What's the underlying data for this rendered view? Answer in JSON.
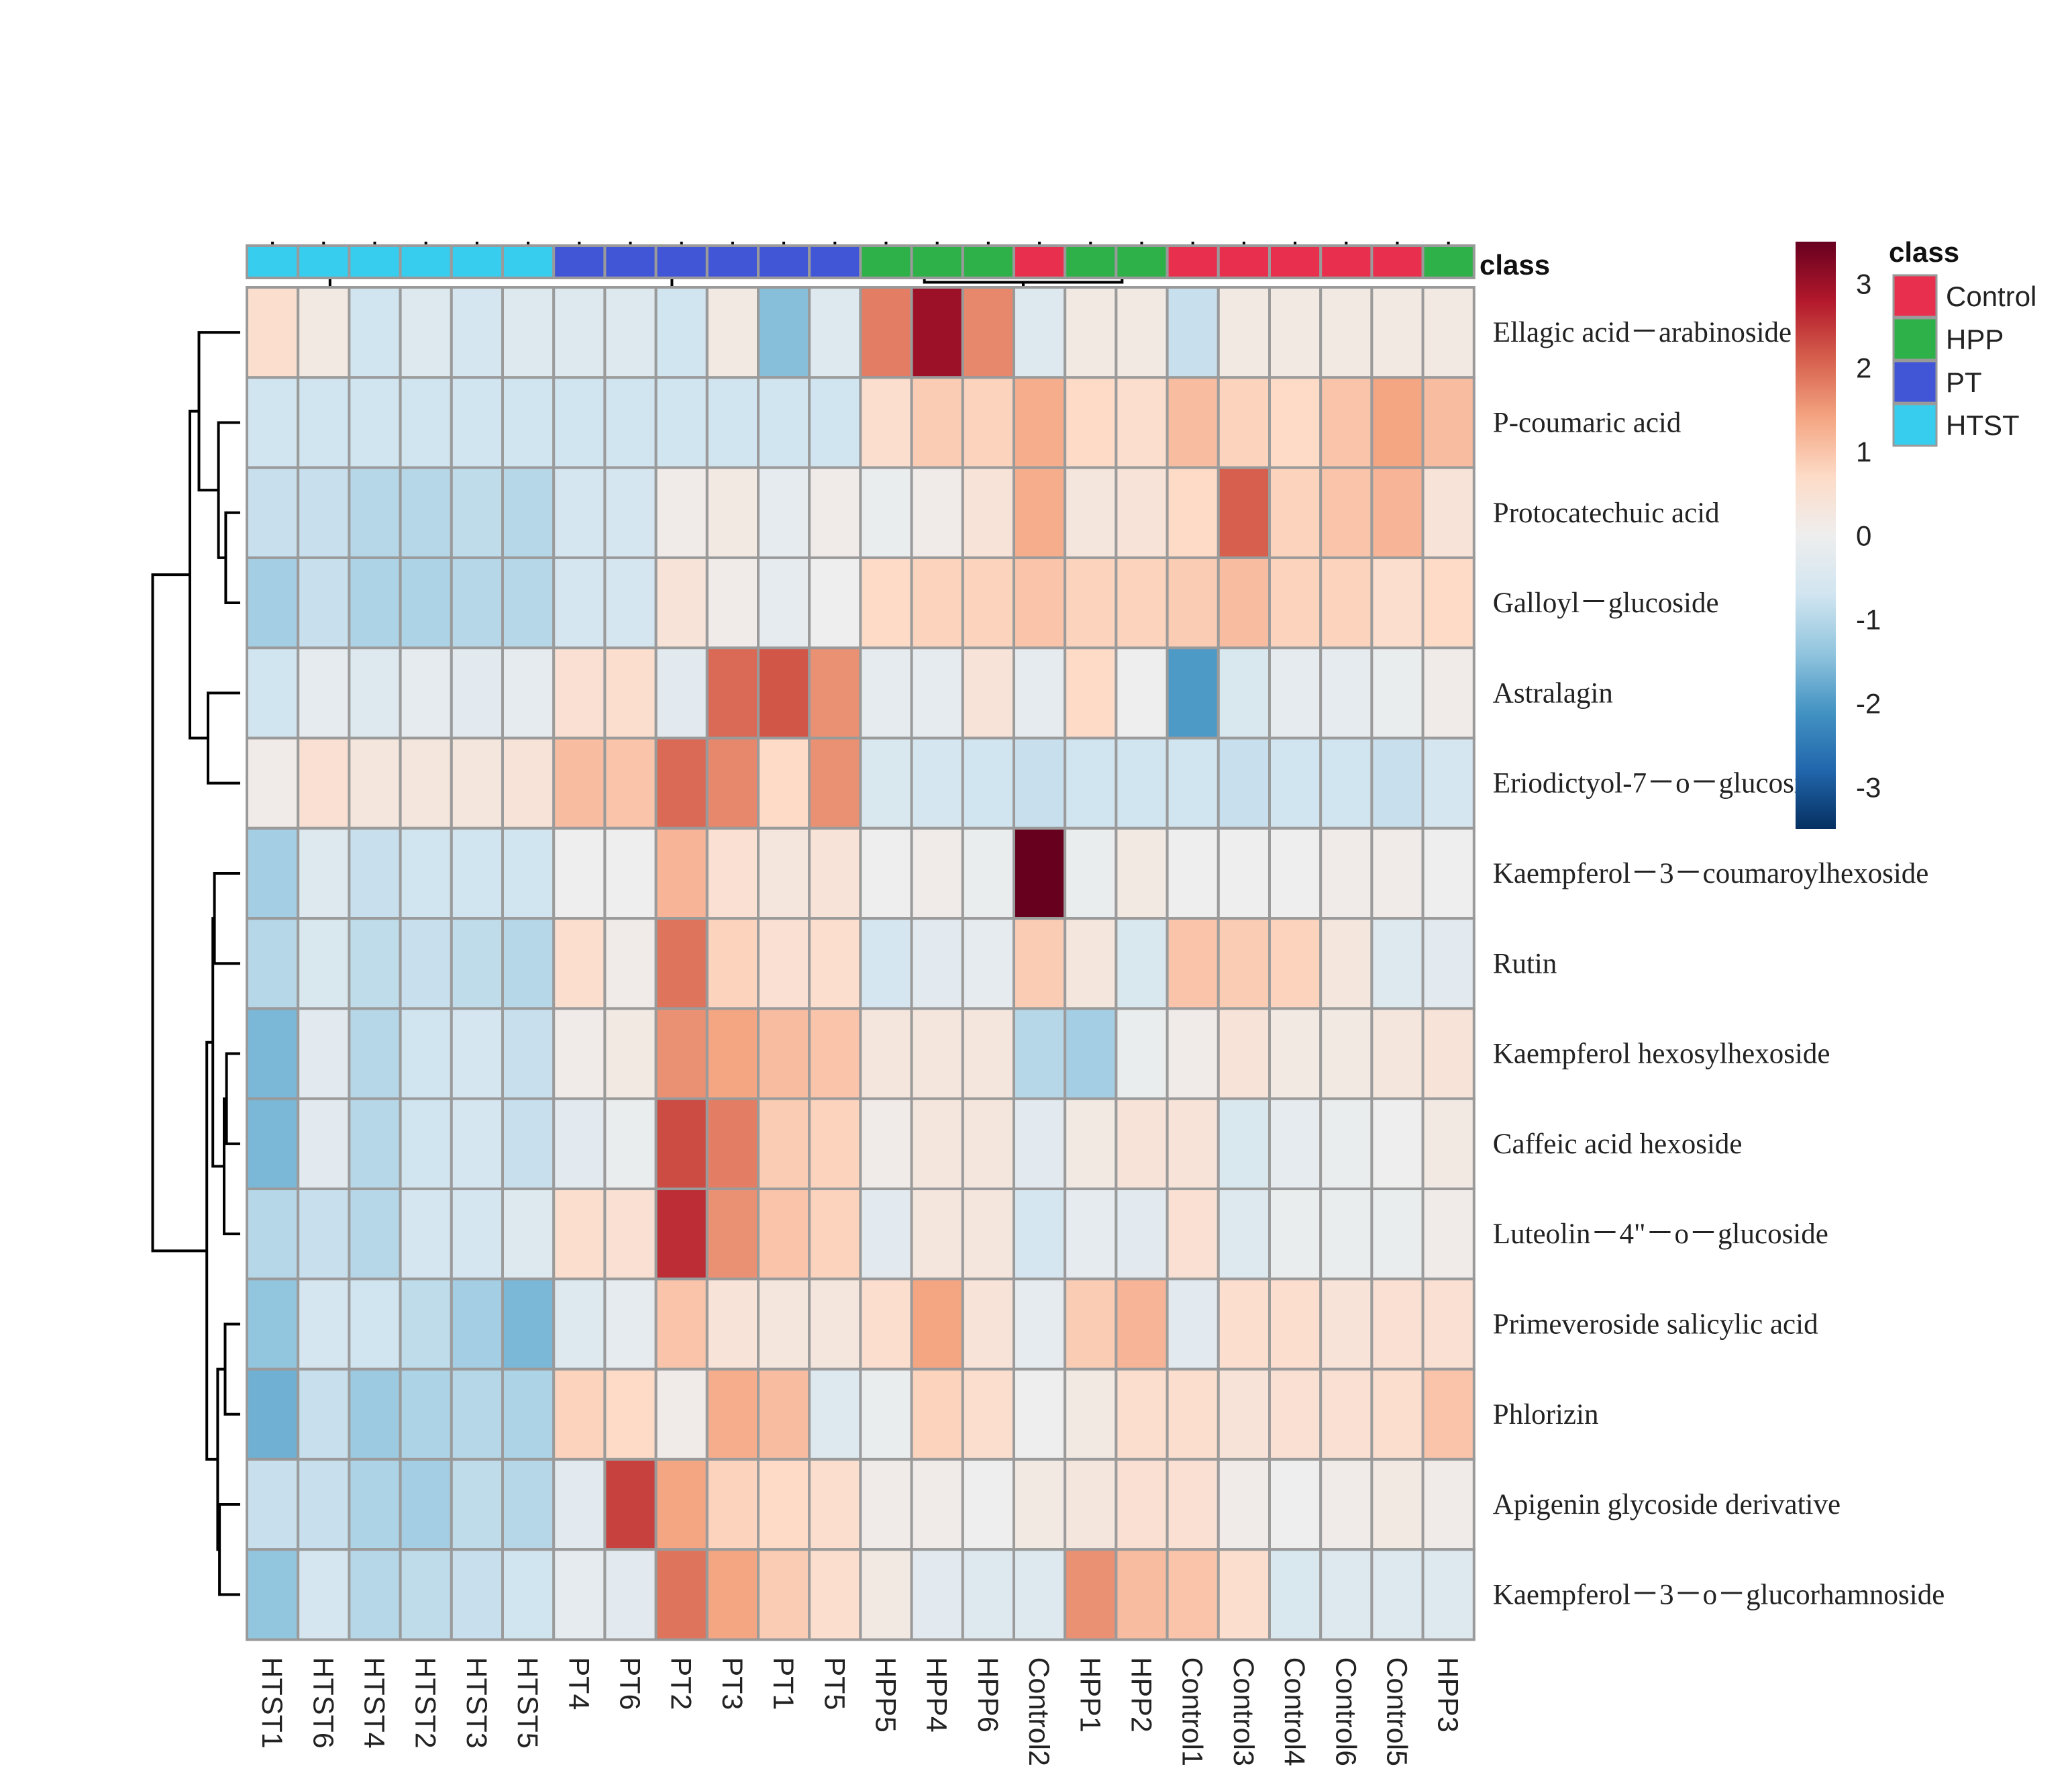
{
  "chart_data": {
    "type": "heatmap",
    "title": "",
    "columns": [
      "HTST1",
      "HTST6",
      "HTST4",
      "HTST2",
      "HTST3",
      "HTST5",
      "PT4",
      "PT6",
      "PT2",
      "PT3",
      "PT1",
      "PT5",
      "HPP5",
      "HPP4",
      "HPP6",
      "Control2",
      "HPP1",
      "HPP2",
      "Control1",
      "Control3",
      "Control4",
      "Control6",
      "Control5",
      "HPP3"
    ],
    "column_classes": [
      "HTST",
      "HTST",
      "HTST",
      "HTST",
      "HTST",
      "HTST",
      "PT",
      "PT",
      "PT",
      "PT",
      "PT",
      "PT",
      "HPP",
      "HPP",
      "HPP",
      "Control",
      "HPP",
      "HPP",
      "Control",
      "Control",
      "Control",
      "Control",
      "Control",
      "HPP"
    ],
    "rows": [
      "Ellagic acid－arabinoside",
      "P-coumaric acid",
      "Protocatechuic acid",
      "Galloyl－glucoside",
      "Astralagin",
      "Eriodictyol-7－o－glucoside",
      "Kaempferol－3－coumaroylhexoside",
      "Rutin",
      "Kaempferol hexosylhexoside",
      "Caffeic acid hexoside",
      "Luteolin－4\"－o－glucoside",
      "Primeveroside salicylic acid",
      "Phlorizin",
      "Apigenin glycoside derivative",
      "Kaempferol－3－o－glucorhamnoside"
    ],
    "values": [
      [
        0.6,
        0.2,
        -0.7,
        -0.4,
        -0.6,
        -0.4,
        -0.4,
        -0.4,
        -0.7,
        0.2,
        -1.5,
        -0.4,
        1.8,
        3.0,
        1.7,
        -0.4,
        0.2,
        0.2,
        -0.8,
        0.2,
        0.2,
        0.2,
        0.2,
        0.2
      ],
      [
        -0.7,
        -0.7,
        -0.7,
        -0.7,
        -0.7,
        -0.7,
        -0.7,
        -0.7,
        -0.7,
        -0.7,
        -0.7,
        -0.7,
        0.6,
        0.9,
        0.8,
        1.3,
        0.7,
        0.6,
        1.1,
        0.8,
        0.7,
        1.0,
        1.4,
        1.1
      ],
      [
        -0.8,
        -0.8,
        -1.0,
        -1.0,
        -0.9,
        -1.0,
        -0.6,
        -0.6,
        0.1,
        0.2,
        -0.2,
        0.1,
        -0.1,
        0.1,
        0.4,
        1.3,
        0.3,
        0.4,
        0.7,
        2.1,
        0.8,
        1.0,
        1.2,
        0.4
      ],
      [
        -1.2,
        -0.8,
        -1.1,
        -1.1,
        -1.0,
        -1.0,
        -0.6,
        -0.6,
        0.4,
        0.1,
        -0.2,
        0.0,
        0.7,
        0.8,
        0.8,
        1.0,
        0.8,
        0.8,
        0.9,
        1.1,
        0.8,
        0.8,
        0.6,
        0.7
      ],
      [
        -0.7,
        -0.2,
        -0.4,
        -0.2,
        -0.3,
        -0.2,
        0.5,
        0.6,
        -0.3,
        2.0,
        2.2,
        1.6,
        -0.2,
        -0.2,
        0.4,
        -0.2,
        0.7,
        0.0,
        -2.0,
        -0.5,
        -0.2,
        -0.2,
        -0.1,
        0.1
      ],
      [
        0.1,
        0.5,
        0.3,
        0.3,
        0.3,
        0.4,
        1.1,
        1.0,
        2.0,
        1.7,
        0.7,
        1.6,
        -0.5,
        -0.6,
        -0.7,
        -0.8,
        -0.7,
        -0.7,
        -0.7,
        -0.8,
        -0.7,
        -0.7,
        -0.8,
        -0.6
      ],
      [
        -1.2,
        -0.4,
        -0.8,
        -0.7,
        -0.7,
        -0.7,
        0.0,
        0.0,
        1.2,
        0.5,
        0.3,
        0.4,
        0.0,
        0.1,
        -0.1,
        3.6,
        -0.1,
        0.2,
        0.0,
        0.0,
        0.0,
        0.1,
        0.1,
        0.0
      ],
      [
        -1.0,
        -0.5,
        -0.9,
        -0.8,
        -0.9,
        -1.0,
        0.6,
        0.1,
        1.9,
        0.8,
        0.5,
        0.6,
        -0.6,
        -0.3,
        -0.2,
        0.9,
        0.3,
        -0.5,
        1.0,
        0.9,
        0.8,
        0.3,
        -0.4,
        -0.3
      ],
      [
        -1.6,
        -0.3,
        -1.0,
        -0.7,
        -0.6,
        -0.8,
        0.1,
        0.2,
        1.6,
        1.4,
        1.1,
        1.0,
        0.3,
        0.3,
        0.3,
        -1.0,
        -1.2,
        -0.1,
        0.1,
        0.4,
        0.2,
        0.2,
        0.3,
        0.4
      ],
      [
        -1.6,
        -0.3,
        -1.0,
        -0.7,
        -0.6,
        -0.8,
        -0.3,
        -0.1,
        2.3,
        1.8,
        0.9,
        0.8,
        0.1,
        0.3,
        0.3,
        -0.3,
        0.2,
        0.4,
        0.4,
        -0.5,
        -0.2,
        -0.1,
        0.0,
        0.2
      ],
      [
        -1.0,
        -0.8,
        -1.0,
        -0.6,
        -0.6,
        -0.4,
        0.6,
        0.5,
        2.6,
        1.6,
        1.0,
        0.8,
        -0.3,
        0.3,
        0.3,
        -0.6,
        -0.2,
        -0.3,
        0.5,
        -0.4,
        -0.1,
        -0.1,
        -0.1,
        0.1
      ],
      [
        -1.4,
        -0.6,
        -0.7,
        -0.9,
        -1.2,
        -1.6,
        -0.4,
        -0.2,
        1.0,
        0.4,
        0.3,
        0.3,
        0.6,
        1.4,
        0.4,
        -0.2,
        0.9,
        1.2,
        -0.3,
        0.6,
        0.6,
        0.4,
        0.5,
        0.5
      ],
      [
        -1.7,
        -0.8,
        -1.3,
        -1.1,
        -1.0,
        -1.1,
        0.8,
        0.7,
        0.1,
        1.3,
        1.1,
        -0.4,
        -0.1,
        0.8,
        0.6,
        0.0,
        0.2,
        0.6,
        0.6,
        0.4,
        0.5,
        0.5,
        0.6,
        1.0
      ],
      [
        -0.8,
        -0.8,
        -1.1,
        -1.2,
        -0.9,
        -1.0,
        -0.3,
        2.4,
        1.4,
        0.8,
        0.7,
        0.6,
        0.1,
        0.1,
        0.0,
        0.2,
        0.3,
        0.5,
        0.5,
        0.1,
        0.0,
        0.1,
        0.2,
        0.1
      ],
      [
        -1.4,
        -0.6,
        -1.0,
        -0.9,
        -0.8,
        -0.7,
        -0.2,
        -0.3,
        1.9,
        1.4,
        0.9,
        0.6,
        0.2,
        -0.3,
        -0.4,
        -0.4,
        1.6,
        1.1,
        1.0,
        0.6,
        -0.5,
        -0.4,
        -0.4,
        -0.4
      ]
    ],
    "colorbar": {
      "min": -3.5,
      "max": 3.5,
      "ticks": [
        3,
        2,
        1,
        0,
        -1,
        -2,
        -3
      ]
    },
    "annotation_title": "class",
    "legend_title": "class",
    "legend": [
      {
        "name": "Control",
        "color": "#e8304e"
      },
      {
        "name": "HPP",
        "color": "#2fb14a"
      },
      {
        "name": "PT",
        "color": "#4056d6"
      },
      {
        "name": "HTST",
        "color": "#36cdef"
      }
    ],
    "colormap": [
      "#053061",
      "#2166ac",
      "#4393c3",
      "#92c5de",
      "#d1e5f0",
      "#eeeeee",
      "#fddbc7",
      "#f4a582",
      "#d6604d",
      "#b2182b",
      "#67001f"
    ]
  }
}
